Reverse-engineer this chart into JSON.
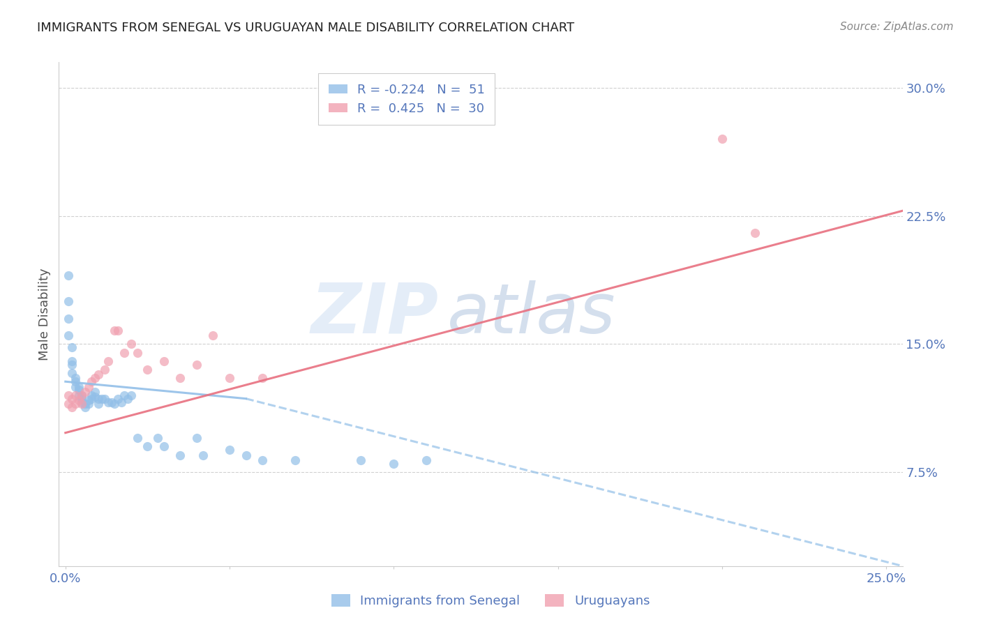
{
  "title": "IMMIGRANTS FROM SENEGAL VS URUGUAYAN MALE DISABILITY CORRELATION CHART",
  "source": "Source: ZipAtlas.com",
  "ylabel": "Male Disability",
  "ytick_labels": [
    "7.5%",
    "15.0%",
    "22.5%",
    "30.0%"
  ],
  "ytick_values": [
    0.075,
    0.15,
    0.225,
    0.3
  ],
  "xtick_values": [
    0.0,
    0.05,
    0.1,
    0.15,
    0.2,
    0.25
  ],
  "xlim": [
    -0.002,
    0.255
  ],
  "ylim": [
    0.02,
    0.315
  ],
  "legend_entries": [
    {
      "label": "R = -0.224   N =  51",
      "color": "#a8c8f0"
    },
    {
      "label": "R =  0.425   N =  30",
      "color": "#f4a0b0"
    }
  ],
  "scatter_blue": {
    "x": [
      0.001,
      0.001,
      0.001,
      0.001,
      0.002,
      0.002,
      0.002,
      0.002,
      0.003,
      0.003,
      0.003,
      0.004,
      0.004,
      0.004,
      0.005,
      0.005,
      0.005,
      0.006,
      0.006,
      0.007,
      0.007,
      0.008,
      0.008,
      0.009,
      0.009,
      0.01,
      0.01,
      0.011,
      0.012,
      0.013,
      0.014,
      0.015,
      0.016,
      0.017,
      0.018,
      0.019,
      0.02,
      0.022,
      0.025,
      0.028,
      0.03,
      0.035,
      0.04,
      0.042,
      0.05,
      0.055,
      0.06,
      0.07,
      0.09,
      0.1,
      0.11
    ],
    "y": [
      0.19,
      0.175,
      0.165,
      0.155,
      0.148,
      0.14,
      0.138,
      0.133,
      0.13,
      0.128,
      0.125,
      0.125,
      0.123,
      0.12,
      0.12,
      0.118,
      0.116,
      0.115,
      0.113,
      0.115,
      0.117,
      0.12,
      0.118,
      0.122,
      0.119,
      0.118,
      0.115,
      0.118,
      0.118,
      0.116,
      0.116,
      0.115,
      0.118,
      0.116,
      0.12,
      0.118,
      0.12,
      0.095,
      0.09,
      0.095,
      0.09,
      0.085,
      0.095,
      0.085,
      0.088,
      0.085,
      0.082,
      0.082,
      0.082,
      0.08,
      0.082
    ]
  },
  "scatter_pink": {
    "x": [
      0.001,
      0.001,
      0.002,
      0.002,
      0.003,
      0.003,
      0.004,
      0.005,
      0.005,
      0.006,
      0.007,
      0.008,
      0.009,
      0.01,
      0.012,
      0.013,
      0.015,
      0.016,
      0.018,
      0.02,
      0.022,
      0.025,
      0.03,
      0.035,
      0.04,
      0.045,
      0.05,
      0.06,
      0.2,
      0.21
    ],
    "y": [
      0.115,
      0.12,
      0.118,
      0.113,
      0.115,
      0.12,
      0.117,
      0.115,
      0.12,
      0.122,
      0.125,
      0.128,
      0.13,
      0.132,
      0.135,
      0.14,
      0.158,
      0.158,
      0.145,
      0.15,
      0.145,
      0.135,
      0.14,
      0.13,
      0.138,
      0.155,
      0.13,
      0.13,
      0.27,
      0.215
    ]
  },
  "trendline_blue_solid": {
    "x": [
      0.0,
      0.055
    ],
    "y": [
      0.128,
      0.118
    ]
  },
  "trendline_blue_dashed": {
    "x": [
      0.055,
      0.255
    ],
    "y": [
      0.118,
      0.02
    ]
  },
  "trendline_pink_solid": {
    "x": [
      0.0,
      0.255
    ],
    "y": [
      0.098,
      0.228
    ]
  },
  "blue_color": "#92bfe8",
  "pink_color": "#f0a0b0",
  "trendline_blue_color": "#92bfe8",
  "trendline_pink_color": "#e87080",
  "axis_color": "#5577bb",
  "grid_color": "#d0d0d0",
  "watermark_zip": "ZIP",
  "watermark_atlas": "atlas",
  "background_color": "#ffffff"
}
